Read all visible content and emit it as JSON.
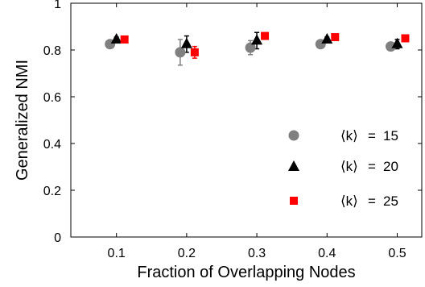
{
  "chart_data": {
    "type": "scatter",
    "title": "",
    "xlabel": "Fraction of Overlapping Nodes",
    "ylabel": "Generalized NMI",
    "x_ticks": [
      "0.1",
      "0.2",
      "0.3",
      "0.4",
      "0.5"
    ],
    "y_ticks": [
      "0",
      "0.2",
      "0.4",
      "0.6",
      "0.8",
      "1"
    ],
    "xlim": [
      0.035,
      0.535
    ],
    "ylim": [
      0,
      1
    ],
    "grid": false,
    "legend_position": "bottom-right",
    "series": [
      {
        "name": "⟨k⟩ = 15",
        "legend_k": "⟨k⟩",
        "legend_eq": "=",
        "legend_value": "15",
        "marker": "circle",
        "color": "#808080",
        "points": [
          {
            "x": 0.1,
            "y": 0.825,
            "err": 0.01
          },
          {
            "x": 0.2,
            "y": 0.79,
            "err": 0.055
          },
          {
            "x": 0.3,
            "y": 0.81,
            "err": 0.03
          },
          {
            "x": 0.4,
            "y": 0.825,
            "err": 0.008
          },
          {
            "x": 0.5,
            "y": 0.815,
            "err": 0.008
          }
        ]
      },
      {
        "name": "⟨k⟩ = 20",
        "legend_k": "⟨k⟩",
        "legend_eq": "=",
        "legend_value": "20",
        "marker": "triangle",
        "color": "#000000",
        "points": [
          {
            "x": 0.1,
            "y": 0.845,
            "err": 0.01
          },
          {
            "x": 0.2,
            "y": 0.825,
            "err": 0.035
          },
          {
            "x": 0.3,
            "y": 0.84,
            "err": 0.035
          },
          {
            "x": 0.4,
            "y": 0.845,
            "err": 0.01
          },
          {
            "x": 0.5,
            "y": 0.825,
            "err": 0.02
          }
        ]
      },
      {
        "name": "⟨k⟩ = 25",
        "legend_k": "⟨k⟩",
        "legend_eq": "=",
        "legend_value": "25",
        "marker": "square",
        "color": "#ff0000",
        "points": [
          {
            "x": 0.1,
            "y": 0.845,
            "err": 0.005
          },
          {
            "x": 0.2,
            "y": 0.79,
            "err": 0.025
          },
          {
            "x": 0.3,
            "y": 0.86,
            "err": 0.005
          },
          {
            "x": 0.4,
            "y": 0.855,
            "err": 0.005
          },
          {
            "x": 0.5,
            "y": 0.85,
            "err": 0.005
          }
        ]
      }
    ]
  }
}
